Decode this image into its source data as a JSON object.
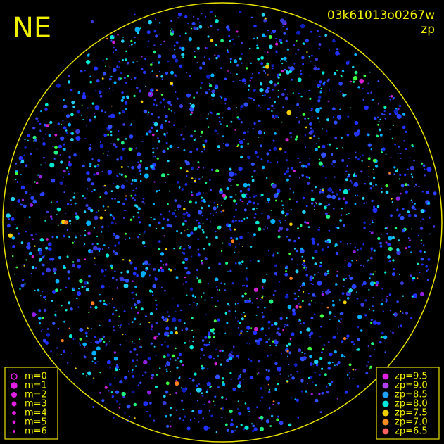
{
  "header": {
    "camera": "NE",
    "frame": "03k61013o0267w",
    "mode": "zp"
  },
  "legend_magnitude": [
    "m=0",
    "m=1",
    "m=2",
    "m=3",
    "m=4",
    "m=5",
    "m=6"
  ],
  "legend_zp": [
    {
      "label": "zp=9.5",
      "color": "#e020e0"
    },
    {
      "label": "zp=9.0",
      "color": "#b040f0"
    },
    {
      "label": "zp=8.5",
      "color": "#20a0ff"
    },
    {
      "label": "zp=8.0",
      "color": "#00e8e0"
    },
    {
      "label": "zp=7.5",
      "color": "#f0d000"
    },
    {
      "label": "zp=7.0",
      "color": "#ff8c20"
    },
    {
      "label": "zp=6.5",
      "color": "#ff6060"
    }
  ]
}
